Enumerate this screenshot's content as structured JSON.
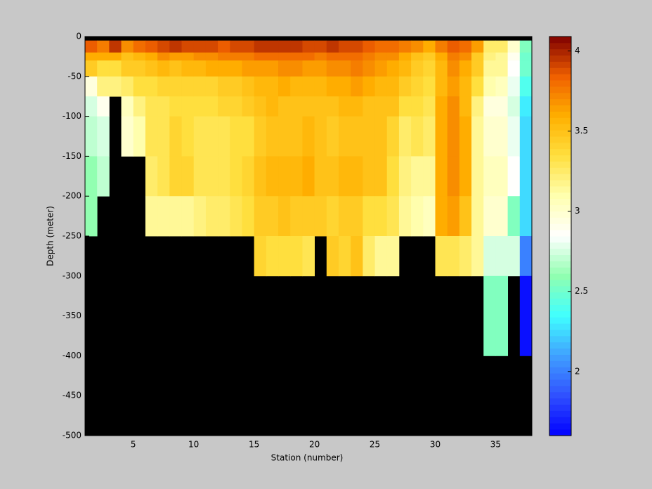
{
  "chart_data": {
    "type": "heatmap",
    "xlabel": "Station (number)",
    "ylabel": "Depth (meter)",
    "x": [
      1,
      2,
      3,
      4,
      5,
      6,
      7,
      8,
      9,
      10,
      11,
      12,
      13,
      14,
      15,
      16,
      17,
      18,
      19,
      20,
      21,
      22,
      23,
      24,
      25,
      26,
      27,
      28,
      29,
      30,
      31,
      32,
      33,
      34,
      35,
      36,
      37,
      38
    ],
    "y": [
      0,
      -5,
      -20,
      -30,
      -50,
      -75,
      -100,
      -150,
      -200,
      -250,
      -300,
      -400,
      -500
    ],
    "z": [
      [
        null,
        3.85,
        3.6,
        3.45,
        2.95,
        2.75,
        2.7,
        2.6,
        2.6,
        null,
        null,
        null
      ],
      [
        null,
        3.75,
        3.6,
        3.35,
        3.2,
        2.9,
        2.75,
        2.7,
        null,
        null,
        null,
        null
      ],
      [
        null,
        3.95,
        3.6,
        3.35,
        3.2,
        null,
        null,
        null,
        null,
        null,
        null,
        null
      ],
      [
        null,
        3.7,
        3.5,
        3.45,
        3.25,
        3.05,
        3.0,
        null,
        null,
        null,
        null,
        null
      ],
      [
        null,
        3.8,
        3.55,
        3.45,
        3.35,
        3.2,
        3.1,
        null,
        null,
        null,
        null,
        null
      ],
      [
        null,
        3.85,
        3.6,
        3.5,
        3.35,
        3.3,
        3.3,
        3.25,
        3.15,
        null,
        null,
        null
      ],
      [
        null,
        3.9,
        3.7,
        3.55,
        3.4,
        3.3,
        3.3,
        3.3,
        3.15,
        null,
        null,
        null
      ],
      [
        null,
        3.95,
        3.65,
        3.5,
        3.4,
        3.35,
        3.4,
        3.4,
        3.15,
        null,
        null,
        null
      ],
      [
        null,
        3.9,
        3.65,
        3.55,
        3.4,
        3.35,
        3.35,
        3.4,
        3.15,
        null,
        null,
        null
      ],
      [
        null,
        3.9,
        3.7,
        3.55,
        3.4,
        3.35,
        3.3,
        3.3,
        3.2,
        null,
        null,
        null
      ],
      [
        null,
        3.9,
        3.7,
        3.6,
        3.4,
        3.35,
        3.3,
        3.3,
        3.25,
        null,
        null,
        null
      ],
      [
        null,
        3.85,
        3.75,
        3.6,
        3.45,
        3.4,
        3.3,
        3.3,
        3.25,
        null,
        null,
        null
      ],
      [
        null,
        3.9,
        3.75,
        3.6,
        3.45,
        3.4,
        3.35,
        3.35,
        3.3,
        null,
        null,
        null
      ],
      [
        null,
        3.9,
        3.75,
        3.65,
        3.5,
        3.45,
        3.35,
        3.4,
        3.35,
        null,
        null,
        null
      ],
      [
        null,
        3.95,
        3.8,
        3.65,
        3.55,
        3.5,
        3.45,
        3.5,
        3.45,
        3.4,
        null,
        null
      ],
      [
        null,
        3.95,
        3.8,
        3.65,
        3.55,
        3.55,
        3.5,
        3.55,
        3.45,
        3.35,
        null,
        null
      ],
      [
        null,
        3.95,
        3.8,
        3.7,
        3.6,
        3.5,
        3.5,
        3.55,
        3.5,
        3.35,
        null,
        null
      ],
      [
        null,
        3.95,
        3.8,
        3.7,
        3.55,
        3.5,
        3.5,
        3.55,
        3.45,
        3.35,
        null,
        null
      ],
      [
        null,
        3.9,
        3.8,
        3.65,
        3.55,
        3.5,
        3.55,
        3.6,
        3.45,
        3.3,
        null,
        null
      ],
      [
        null,
        3.9,
        3.75,
        3.65,
        3.55,
        3.5,
        3.5,
        3.5,
        3.45,
        null,
        null,
        null
      ],
      [
        null,
        3.95,
        3.8,
        3.7,
        3.6,
        3.5,
        3.45,
        3.5,
        3.4,
        3.45,
        null,
        null
      ],
      [
        null,
        3.9,
        3.8,
        3.7,
        3.6,
        3.55,
        3.5,
        3.55,
        3.45,
        3.4,
        null,
        null
      ],
      [
        null,
        3.9,
        3.8,
        3.75,
        3.65,
        3.55,
        3.5,
        3.55,
        3.45,
        3.5,
        null,
        null
      ],
      [
        null,
        3.85,
        3.75,
        3.7,
        3.6,
        3.5,
        3.5,
        3.5,
        3.35,
        3.25,
        null,
        null
      ],
      [
        null,
        3.8,
        3.7,
        3.65,
        3.55,
        3.5,
        3.5,
        3.5,
        3.35,
        3.15,
        null,
        null
      ],
      [
        null,
        3.8,
        3.7,
        3.6,
        3.55,
        3.5,
        3.4,
        3.35,
        3.3,
        3.15,
        null,
        null
      ],
      [
        null,
        3.75,
        3.6,
        3.55,
        3.45,
        3.35,
        3.25,
        3.2,
        3.15,
        null,
        null,
        null
      ],
      [
        null,
        3.7,
        3.5,
        3.45,
        3.4,
        3.35,
        3.3,
        3.15,
        3.1,
        null,
        null,
        null
      ],
      [
        null,
        3.6,
        3.45,
        3.4,
        3.35,
        3.3,
        3.25,
        3.15,
        3.05,
        null,
        null,
        null
      ],
      [
        null,
        3.75,
        3.6,
        3.55,
        3.55,
        3.6,
        3.6,
        3.6,
        3.6,
        3.3,
        null,
        null
      ],
      [
        null,
        3.85,
        3.75,
        3.7,
        3.65,
        3.7,
        3.7,
        3.7,
        3.65,
        3.3,
        null,
        null
      ],
      [
        null,
        3.8,
        3.7,
        3.6,
        3.55,
        3.55,
        3.6,
        3.6,
        3.5,
        3.25,
        null,
        null
      ],
      [
        null,
        3.65,
        3.45,
        3.45,
        3.35,
        3.2,
        3.15,
        3.15,
        3.15,
        3.15,
        null,
        null
      ],
      [
        null,
        3.25,
        3.2,
        3.15,
        3.1,
        2.95,
        3.0,
        3.05,
        3.0,
        2.75,
        2.55,
        null
      ],
      [
        null,
        3.25,
        3.15,
        3.15,
        3.05,
        2.95,
        3.0,
        3.05,
        3.0,
        2.75,
        2.55,
        null
      ],
      [
        null,
        3.0,
        2.9,
        2.85,
        2.8,
        2.75,
        2.8,
        2.85,
        2.55,
        2.75,
        null,
        null
      ],
      [
        null,
        2.55,
        2.5,
        2.5,
        2.4,
        2.3,
        2.25,
        2.25,
        2.25,
        2.0,
        1.65,
        null
      ]
    ],
    "xlim": [
      1,
      38
    ],
    "xticks": [
      5,
      10,
      15,
      20,
      25,
      30,
      35
    ],
    "ylim": [
      -500,
      0
    ],
    "yticks": [
      0,
      -50,
      -100,
      -150,
      -200,
      -250,
      -300,
      -350,
      -400,
      -450,
      -500
    ],
    "clim": [
      1.6,
      4.09
    ],
    "cticks": [
      2,
      2.5,
      3,
      3.5,
      4
    ],
    "colormap": [
      "#0000ff",
      "#3050ff",
      "#40a0ff",
      "#40ffff",
      "#90ffb0",
      "#ffffff",
      "#ffffb0",
      "#ffe040",
      "#ffb000",
      "#f06000",
      "#800000"
    ],
    "missing_color": "#000000"
  }
}
